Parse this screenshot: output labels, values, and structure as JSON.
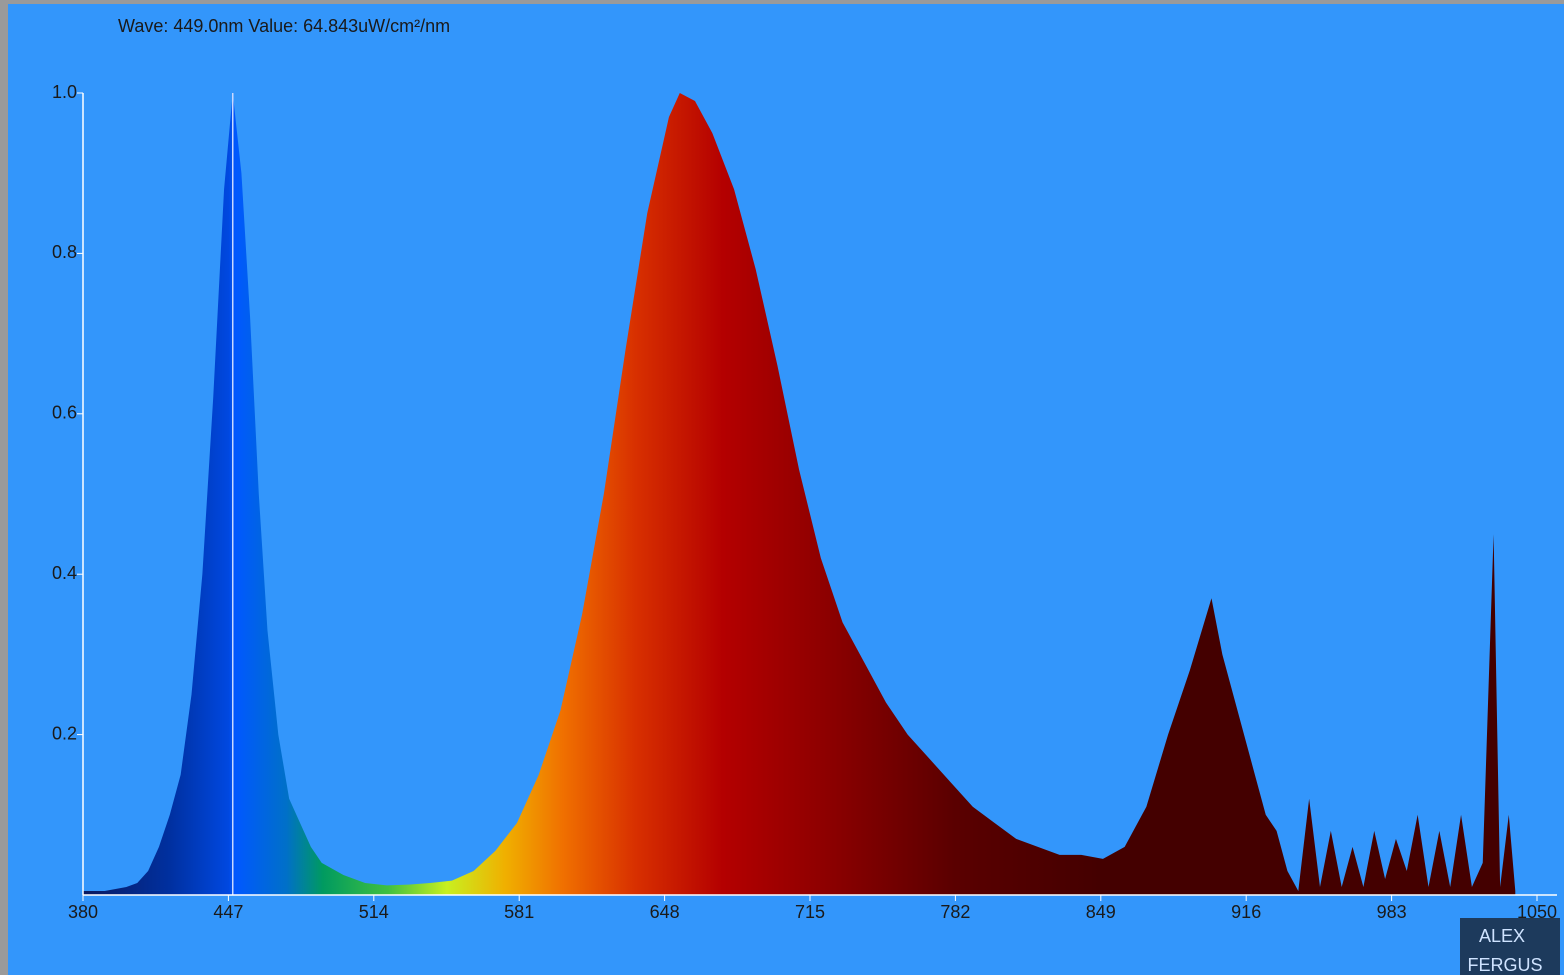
{
  "chart_data": {
    "type": "area",
    "readout": "Wave: 449.0nm Value: 64.843uW/cm²/nm",
    "cursor_x": 449,
    "watermark": [
      "ALEX",
      "FERGUS"
    ],
    "x": [
      380,
      390,
      400,
      405,
      410,
      415,
      420,
      425,
      430,
      435,
      440,
      445,
      449,
      453,
      457,
      461,
      465,
      470,
      475,
      480,
      485,
      490,
      500,
      510,
      520,
      530,
      540,
      550,
      560,
      570,
      580,
      590,
      600,
      610,
      620,
      630,
      640,
      650,
      655,
      662,
      670,
      680,
      690,
      700,
      710,
      720,
      730,
      740,
      750,
      760,
      770,
      780,
      790,
      800,
      810,
      820,
      830,
      840,
      850,
      860,
      870,
      880,
      890,
      900,
      905,
      910,
      915,
      920,
      925,
      930,
      935,
      940,
      945,
      950,
      955,
      960,
      965,
      970,
      975,
      980,
      985,
      990,
      995,
      1000,
      1005,
      1010,
      1015,
      1020,
      1025,
      1030,
      1033,
      1037,
      1040
    ],
    "values": [
      0.005,
      0.005,
      0.01,
      0.015,
      0.03,
      0.06,
      0.1,
      0.15,
      0.25,
      0.4,
      0.62,
      0.88,
      1.0,
      0.9,
      0.72,
      0.5,
      0.33,
      0.2,
      0.12,
      0.09,
      0.06,
      0.04,
      0.025,
      0.015,
      0.012,
      0.013,
      0.015,
      0.018,
      0.03,
      0.055,
      0.09,
      0.15,
      0.23,
      0.35,
      0.5,
      0.68,
      0.85,
      0.97,
      1.0,
      0.99,
      0.95,
      0.88,
      0.78,
      0.66,
      0.53,
      0.42,
      0.34,
      0.29,
      0.24,
      0.2,
      0.17,
      0.14,
      0.11,
      0.09,
      0.07,
      0.06,
      0.05,
      0.05,
      0.045,
      0.06,
      0.11,
      0.2,
      0.28,
      0.37,
      0.3,
      0.25,
      0.2,
      0.15,
      0.1,
      0.08,
      0.03,
      0.005,
      0.12,
      0.01,
      0.08,
      0.01,
      0.06,
      0.01,
      0.08,
      0.02,
      0.07,
      0.03,
      0.1,
      0.01,
      0.08,
      0.01,
      0.1,
      0.01,
      0.04,
      0.45,
      0.01,
      0.1,
      0.005
    ],
    "xlim": [
      380,
      1050
    ],
    "xticks": [
      380,
      447,
      514,
      581,
      648,
      715,
      782,
      849,
      916,
      983,
      1050
    ],
    "ylim": [
      0,
      1
    ],
    "yticks": [
      0.2,
      0.4,
      0.6,
      0.8,
      {
        "value": 1,
        "label": "1.0"
      }
    ]
  }
}
